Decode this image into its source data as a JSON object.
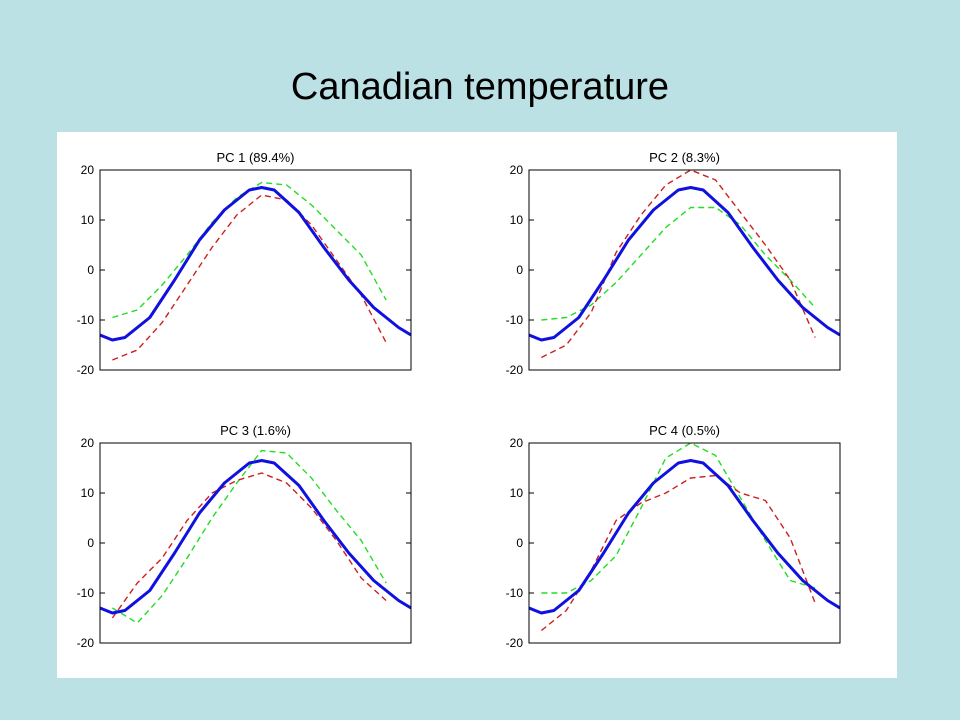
{
  "slide": {
    "title": "Canadian temperature"
  },
  "colors": {
    "mean": "#1010E0",
    "plus": "#22DD22",
    "minus": "#CC2020",
    "background": "#BCE1E5"
  },
  "chart_data": [
    {
      "type": "line",
      "title": "PC 1 (89.4%)",
      "ylim": [
        -20,
        20
      ],
      "xlim": [
        0,
        1
      ],
      "yticks": [
        "20",
        "10",
        "0",
        "-10",
        "-20"
      ],
      "series": [
        {
          "role": "mean",
          "style": "solid",
          "x": [
            0,
            0.04,
            0.08,
            0.16,
            0.24,
            0.32,
            0.4,
            0.48,
            0.52,
            0.56,
            0.64,
            0.72,
            0.8,
            0.88,
            0.96,
            1.0
          ],
          "y": [
            -13,
            -14,
            -13.5,
            -9.5,
            -2,
            6,
            12,
            16,
            16.5,
            16,
            11.5,
            4.5,
            -2,
            -7.5,
            -11.5,
            -13
          ]
        },
        {
          "role": "plus",
          "style": "dashed",
          "x": [
            0.04,
            0.12,
            0.2,
            0.28,
            0.36,
            0.44,
            0.52,
            0.6,
            0.68,
            0.76,
            0.84,
            0.92
          ],
          "y": [
            -9.5,
            -8,
            -3,
            3,
            9.5,
            14.5,
            17.5,
            17,
            13,
            8,
            3,
            -6
          ]
        },
        {
          "role": "minus",
          "style": "dashed",
          "x": [
            0.04,
            0.12,
            0.2,
            0.28,
            0.36,
            0.44,
            0.52,
            0.6,
            0.68,
            0.76,
            0.84,
            0.92
          ],
          "y": [
            -18,
            -16,
            -10.5,
            -3,
            4.5,
            11,
            15,
            14,
            9,
            2,
            -5,
            -14.5
          ]
        }
      ]
    },
    {
      "type": "line",
      "title": "PC 2 (8.3%)",
      "ylim": [
        -20,
        20
      ],
      "xlim": [
        0,
        1
      ],
      "yticks": [
        "20",
        "10",
        "0",
        "-10",
        "-20"
      ],
      "series": [
        {
          "role": "mean",
          "style": "solid",
          "x": [
            0,
            0.04,
            0.08,
            0.16,
            0.24,
            0.32,
            0.4,
            0.48,
            0.52,
            0.56,
            0.64,
            0.72,
            0.8,
            0.88,
            0.96,
            1.0
          ],
          "y": [
            -13,
            -14,
            -13.5,
            -9.5,
            -2,
            6,
            12,
            16,
            16.5,
            16,
            11.5,
            4.5,
            -2,
            -7.5,
            -11.5,
            -13
          ]
        },
        {
          "role": "plus",
          "style": "dashed",
          "x": [
            0.04,
            0.12,
            0.2,
            0.28,
            0.36,
            0.44,
            0.52,
            0.6,
            0.68,
            0.76,
            0.84,
            0.92
          ],
          "y": [
            -10,
            -9.5,
            -7,
            -2.5,
            3,
            8.5,
            12.5,
            12.5,
            9,
            3,
            -2,
            -7.5
          ]
        },
        {
          "role": "minus",
          "style": "dashed",
          "x": [
            0.04,
            0.12,
            0.2,
            0.28,
            0.36,
            0.44,
            0.52,
            0.6,
            0.68,
            0.76,
            0.84,
            0.92
          ],
          "y": [
            -17.5,
            -15,
            -8.5,
            3.5,
            11,
            17,
            20,
            18,
            11.5,
            5,
            -2,
            -13.5
          ]
        }
      ]
    },
    {
      "type": "line",
      "title": "PC 3 (1.6%)",
      "ylim": [
        -20,
        20
      ],
      "xlim": [
        0,
        1
      ],
      "yticks": [
        "20",
        "10",
        "0",
        "-10",
        "-20"
      ],
      "series": [
        {
          "role": "mean",
          "style": "solid",
          "x": [
            0,
            0.04,
            0.08,
            0.16,
            0.24,
            0.32,
            0.4,
            0.48,
            0.52,
            0.56,
            0.64,
            0.72,
            0.8,
            0.88,
            0.96,
            1.0
          ],
          "y": [
            -13,
            -14,
            -13.5,
            -9.5,
            -2,
            6,
            12,
            16,
            16.5,
            16,
            11.5,
            4.5,
            -2,
            -7.5,
            -11.5,
            -13
          ]
        },
        {
          "role": "plus",
          "style": "dashed",
          "x": [
            0.04,
            0.12,
            0.2,
            0.28,
            0.36,
            0.44,
            0.52,
            0.6,
            0.68,
            0.76,
            0.84,
            0.92
          ],
          "y": [
            -13,
            -16,
            -10.5,
            -3,
            5,
            12,
            18.5,
            18,
            13,
            6.5,
            0.5,
            -8
          ]
        },
        {
          "role": "minus",
          "style": "dashed",
          "x": [
            0.04,
            0.12,
            0.2,
            0.28,
            0.36,
            0.44,
            0.52,
            0.6,
            0.68,
            0.76,
            0.84,
            0.92
          ],
          "y": [
            -15,
            -8,
            -3,
            4.5,
            10,
            12.5,
            14,
            12,
            7,
            0.5,
            -7,
            -11.5
          ]
        }
      ]
    },
    {
      "type": "line",
      "title": "PC 4 (0.5%)",
      "ylim": [
        -20,
        20
      ],
      "xlim": [
        0,
        1
      ],
      "yticks": [
        "20",
        "10",
        "0",
        "-10",
        "-20"
      ],
      "series": [
        {
          "role": "mean",
          "style": "solid",
          "x": [
            0,
            0.04,
            0.08,
            0.16,
            0.24,
            0.32,
            0.4,
            0.48,
            0.52,
            0.56,
            0.64,
            0.72,
            0.8,
            0.88,
            0.96,
            1.0
          ],
          "y": [
            -13,
            -14,
            -13.5,
            -9.5,
            -2,
            6,
            12,
            16,
            16.5,
            16,
            11.5,
            4.5,
            -2,
            -7.5,
            -11.5,
            -13
          ]
        },
        {
          "role": "plus",
          "style": "dashed",
          "x": [
            0.04,
            0.12,
            0.2,
            0.28,
            0.36,
            0.44,
            0.52,
            0.6,
            0.68,
            0.76,
            0.84,
            0.92
          ],
          "y": [
            -10,
            -10,
            -7.5,
            -2.5,
            7,
            17,
            20,
            17.5,
            9,
            0.5,
            -7.5,
            -9
          ]
        },
        {
          "role": "minus",
          "style": "dashed",
          "x": [
            0.04,
            0.12,
            0.2,
            0.28,
            0.36,
            0.44,
            0.52,
            0.6,
            0.68,
            0.76,
            0.84,
            0.92
          ],
          "y": [
            -17.5,
            -13.5,
            -5.5,
            4.5,
            8,
            10,
            13,
            13.5,
            10,
            8.5,
            1,
            -12
          ]
        }
      ]
    }
  ]
}
